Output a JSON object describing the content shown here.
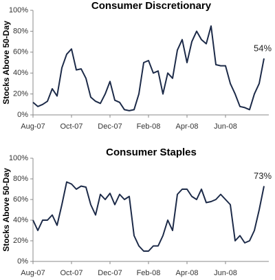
{
  "chart_data": [
    {
      "type": "line",
      "title": "Consumer Discretionary",
      "y_label": "Stocks Above 50-Day",
      "annotation": "54%",
      "categories": [
        "Aug-07",
        null,
        null,
        null,
        null,
        null,
        null,
        null,
        "Oct-07",
        null,
        null,
        null,
        null,
        null,
        null,
        null,
        "Dec-07",
        null,
        null,
        null,
        null,
        null,
        null,
        null,
        "Feb-08",
        null,
        null,
        null,
        null,
        null,
        null,
        null,
        "Apr-08",
        null,
        null,
        null,
        null,
        null,
        null,
        null,
        "Jun-08",
        null,
        null,
        null,
        null,
        null,
        null,
        null,
        null
      ],
      "series": [
        {
          "color": "#1c2a48",
          "values": [
            12,
            8,
            10,
            13,
            25,
            18,
            45,
            58,
            63,
            43,
            44,
            35,
            17,
            13,
            11,
            20,
            32,
            14,
            12,
            5,
            4,
            5,
            20,
            50,
            52,
            40,
            42,
            20,
            40,
            35,
            62,
            72,
            50,
            70,
            80,
            72,
            68,
            85,
            48,
            47,
            47,
            30,
            20,
            8,
            7,
            5,
            20,
            30,
            54
          ]
        }
      ],
      "ylim": [
        0,
        100
      ],
      "yticks": [
        {
          "value": 0,
          "label": "0%"
        },
        {
          "value": 20,
          "label": "20%"
        },
        {
          "value": 40,
          "label": "40%"
        },
        {
          "value": 60,
          "label": "60%"
        },
        {
          "value": 80,
          "label": "80%"
        },
        {
          "value": 100,
          "label": "100%"
        }
      ]
    },
    {
      "type": "line",
      "title": "Consumer Staples",
      "y_label": "Stocks Above 50-Day",
      "annotation": "73%",
      "categories": [
        "Aug-07",
        null,
        null,
        null,
        null,
        null,
        null,
        null,
        "Oct-07",
        null,
        null,
        null,
        null,
        null,
        null,
        null,
        "Dec-07",
        null,
        null,
        null,
        null,
        null,
        null,
        null,
        "Feb-08",
        null,
        null,
        null,
        null,
        null,
        null,
        null,
        "Apr-08",
        null,
        null,
        null,
        null,
        null,
        null,
        null,
        "Jun-08",
        null,
        null,
        null,
        null,
        null,
        null,
        null,
        null
      ],
      "series": [
        {
          "color": "#1c2a48",
          "values": [
            40,
            30,
            40,
            40,
            45,
            35,
            55,
            77,
            75,
            70,
            73,
            72,
            55,
            45,
            65,
            60,
            66,
            55,
            65,
            60,
            63,
            25,
            15,
            10,
            10,
            15,
            15,
            25,
            40,
            30,
            65,
            70,
            70,
            63,
            60,
            70,
            57,
            58,
            60,
            65,
            60,
            55,
            20,
            25,
            18,
            20,
            30,
            50,
            73
          ]
        }
      ],
      "ylim": [
        0,
        100
      ],
      "yticks": [
        {
          "value": 0,
          "label": "0%"
        },
        {
          "value": 20,
          "label": "20%"
        },
        {
          "value": 40,
          "label": "40%"
        },
        {
          "value": 60,
          "label": "60%"
        },
        {
          "value": 80,
          "label": "80%"
        },
        {
          "value": 100,
          "label": "100%"
        }
      ]
    }
  ]
}
